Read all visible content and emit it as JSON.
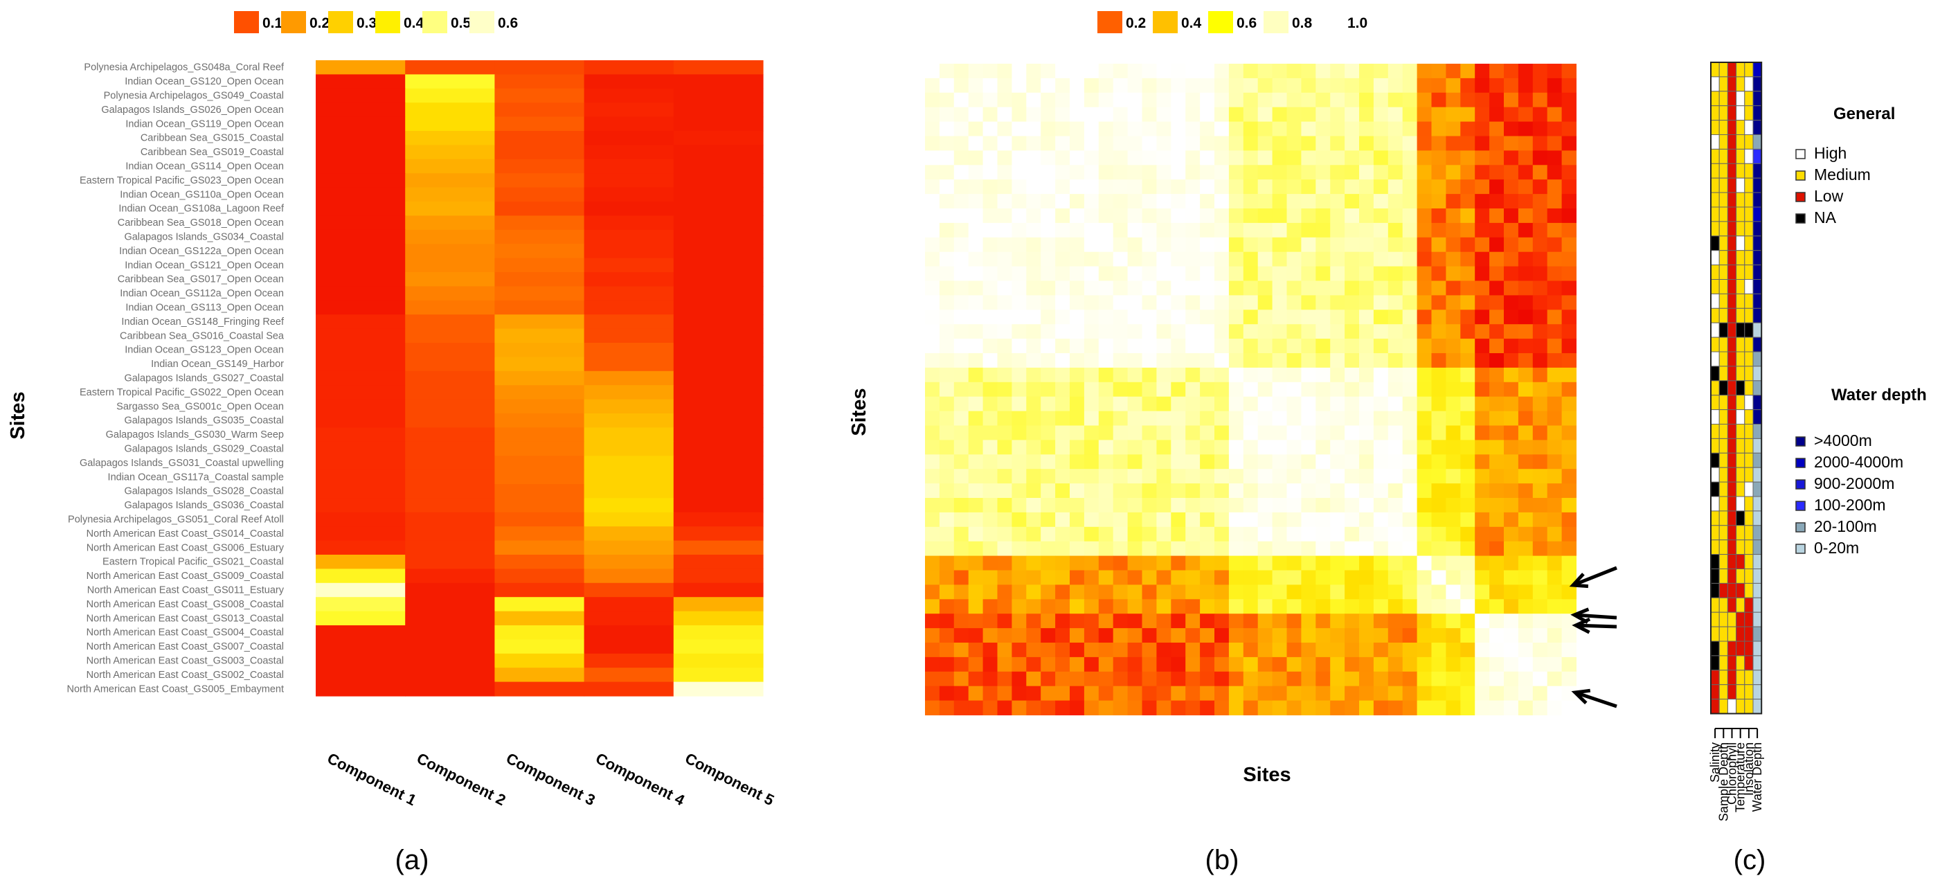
{
  "chart_data": [
    {
      "panel": "(a)",
      "type": "heatmap",
      "ylabel": "Sites",
      "legend": [
        {
          "label": "0.1",
          "color": "#ff5000"
        },
        {
          "label": "0.2",
          "color": "#ff9a00"
        },
        {
          "label": "0.3",
          "color": "#ffd000"
        },
        {
          "label": "0.4",
          "color": "#fff000"
        },
        {
          "label": "0.5",
          "color": "#ffff80"
        },
        {
          "label": "0.6",
          "color": "#ffffc8"
        }
      ],
      "columns": [
        "Component 1",
        "Component 2",
        "Component 3",
        "Component 4",
        "Component 5"
      ],
      "rows": [
        "Polynesia Archipelagos_GS048a_Coral Reef",
        "Indian Ocean_GS120_Open Ocean",
        "Polynesia Archipelagos_GS049_Coastal",
        "Galapagos Islands_GS026_Open Ocean",
        "Indian Ocean_GS119_Open Ocean",
        "Caribbean Sea_GS015_Coastal",
        "Caribbean Sea_GS019_Coastal",
        "Indian Ocean_GS114_Open Ocean",
        "Eastern Tropical Pacific_GS023_Open Ocean",
        "Indian Ocean_GS110a_Open Ocean",
        "Indian Ocean_GS108a_Lagoon Reef",
        "Caribbean Sea_GS018_Open Ocean",
        "Galapagos Islands_GS034_Coastal",
        "Indian Ocean_GS122a_Open Ocean",
        "Indian Ocean_GS121_Open Ocean",
        "Caribbean Sea_GS017_Open Ocean",
        "Indian Ocean_GS112a_Open Ocean",
        "Indian Ocean_GS113_Open Ocean",
        "Indian Ocean_GS148_Fringing Reef",
        "Caribbean Sea_GS016_Coastal Sea",
        "Indian Ocean_GS123_Open Ocean",
        "Indian Ocean_GS149_Harbor",
        "Galapagos Islands_GS027_Coastal",
        "Eastern Tropical Pacific_GS022_Open Ocean",
        "Sargasso Sea_GS001c_Open Ocean",
        "Galapagos Islands_GS035_Coastal",
        "Galapagos Islands_GS030_Warm Seep",
        "Galapagos Islands_GS029_Coastal",
        "Galapagos Islands_GS031_Coastal upwelling",
        "Indian Ocean_GS117a_Coastal sample",
        "Galapagos Islands_GS028_Coastal",
        "Galapagos Islands_GS036_Coastal",
        "Polynesia Archipelagos_GS051_Coral Reef Atoll",
        "North American East Coast_GS014_Coastal",
        "North American East Coast_GS006_Estuary",
        "Eastern Tropical Pacific_GS021_Coastal",
        "North American East Coast_GS009_Coastal",
        "North American East Coast_GS011_Estuary",
        "North American East Coast_GS008_Coastal",
        "North American East Coast_GS013_Coastal",
        "North American East Coast_GS004_Coastal",
        "North American East Coast_GS007_Coastal",
        "North American East Coast_GS003_Coastal",
        "North American East Coast_GS002_Coastal",
        "North American East Coast_GS005_Embayment"
      ],
      "values": [
        [
          0.22,
          0.12,
          0.12,
          0.1,
          0.11
        ],
        [
          0.05,
          0.42,
          0.13,
          0.06,
          0.06
        ],
        [
          0.05,
          0.38,
          0.14,
          0.07,
          0.06
        ],
        [
          0.05,
          0.32,
          0.13,
          0.08,
          0.06
        ],
        [
          0.05,
          0.32,
          0.14,
          0.07,
          0.06
        ],
        [
          0.05,
          0.28,
          0.12,
          0.06,
          0.07
        ],
        [
          0.05,
          0.26,
          0.12,
          0.07,
          0.06
        ],
        [
          0.05,
          0.24,
          0.13,
          0.08,
          0.06
        ],
        [
          0.05,
          0.22,
          0.14,
          0.08,
          0.06
        ],
        [
          0.05,
          0.23,
          0.13,
          0.07,
          0.06
        ],
        [
          0.05,
          0.24,
          0.12,
          0.06,
          0.06
        ],
        [
          0.05,
          0.21,
          0.15,
          0.08,
          0.06
        ],
        [
          0.05,
          0.2,
          0.16,
          0.09,
          0.06
        ],
        [
          0.05,
          0.19,
          0.17,
          0.09,
          0.06
        ],
        [
          0.05,
          0.19,
          0.16,
          0.1,
          0.06
        ],
        [
          0.05,
          0.2,
          0.15,
          0.09,
          0.06
        ],
        [
          0.05,
          0.18,
          0.16,
          0.1,
          0.06
        ],
        [
          0.05,
          0.17,
          0.15,
          0.1,
          0.06
        ],
        [
          0.08,
          0.14,
          0.22,
          0.12,
          0.06
        ],
        [
          0.08,
          0.14,
          0.24,
          0.12,
          0.06
        ],
        [
          0.08,
          0.13,
          0.23,
          0.14,
          0.06
        ],
        [
          0.08,
          0.13,
          0.24,
          0.14,
          0.06
        ],
        [
          0.08,
          0.12,
          0.22,
          0.2,
          0.06
        ],
        [
          0.08,
          0.12,
          0.2,
          0.22,
          0.06
        ],
        [
          0.08,
          0.12,
          0.19,
          0.24,
          0.06
        ],
        [
          0.08,
          0.12,
          0.18,
          0.26,
          0.06
        ],
        [
          0.09,
          0.11,
          0.17,
          0.28,
          0.06
        ],
        [
          0.09,
          0.11,
          0.17,
          0.28,
          0.06
        ],
        [
          0.09,
          0.11,
          0.16,
          0.3,
          0.06
        ],
        [
          0.09,
          0.11,
          0.16,
          0.3,
          0.06
        ],
        [
          0.09,
          0.11,
          0.15,
          0.3,
          0.06
        ],
        [
          0.09,
          0.11,
          0.15,
          0.32,
          0.06
        ],
        [
          0.08,
          0.1,
          0.14,
          0.3,
          0.08
        ],
        [
          0.08,
          0.1,
          0.16,
          0.24,
          0.1
        ],
        [
          0.09,
          0.1,
          0.18,
          0.22,
          0.14
        ],
        [
          0.24,
          0.1,
          0.14,
          0.2,
          0.1
        ],
        [
          0.4,
          0.08,
          0.12,
          0.18,
          0.1
        ],
        [
          0.6,
          0.06,
          0.1,
          0.12,
          0.08
        ],
        [
          0.45,
          0.06,
          0.4,
          0.08,
          0.24
        ],
        [
          0.42,
          0.06,
          0.26,
          0.08,
          0.3
        ],
        [
          0.06,
          0.06,
          0.38,
          0.06,
          0.38
        ],
        [
          0.06,
          0.06,
          0.4,
          0.06,
          0.4
        ],
        [
          0.06,
          0.06,
          0.3,
          0.1,
          0.36
        ],
        [
          0.06,
          0.06,
          0.24,
          0.14,
          0.38
        ],
        [
          0.06,
          0.06,
          0.1,
          0.1,
          0.62
        ]
      ]
    },
    {
      "panel": "(b)",
      "type": "heatmap",
      "xlabel": "Sites",
      "ylabel": "Sites",
      "legend": [
        {
          "label": "0.2",
          "color": "#ff6000"
        },
        {
          "label": "0.4",
          "color": "#ffc000"
        },
        {
          "label": "0.6",
          "color": "#ffff00"
        },
        {
          "label": "0.8",
          "color": "#ffffc0"
        },
        {
          "label": "1.0",
          "color": "#ffffff"
        }
      ],
      "size": 45,
      "arrows": 4
    },
    {
      "panel": "(c)",
      "type": "heatmap",
      "columns": [
        "Salinity",
        "Sample Depth",
        "Chlorophyll",
        "Temperature",
        "Insolation",
        "Water Depth"
      ],
      "legend_general_title": "General",
      "legend_general": [
        {
          "label": "High",
          "color": "#ffffff"
        },
        {
          "label": "Medium",
          "color": "#ffdd00"
        },
        {
          "label": "Low",
          "color": "#dd1100"
        },
        {
          "label": "NA",
          "color": "#000000"
        }
      ],
      "legend_depth_title": "Water depth",
      "legend_depth": [
        {
          "label": ">4000m",
          "color": "#00008b"
        },
        {
          "label": "2000-4000m",
          "color": "#0000c0"
        },
        {
          "label": "900-2000m",
          "color": "#1818d8"
        },
        {
          "label": "100-200m",
          "color": "#2b2bff"
        },
        {
          "label": "20-100m",
          "color": "#8aa8b8"
        },
        {
          "label": "0-20m",
          "color": "#b9d4e0"
        }
      ],
      "general_codes": [
        "W",
        "M",
        "L",
        "N"
      ],
      "rows": [
        [
          "M",
          "M",
          "L",
          "M",
          "M",
          "D2"
        ],
        [
          "W",
          "M",
          "L",
          "M",
          "W",
          "D1"
        ],
        [
          "M",
          "M",
          "L",
          "W",
          "M",
          "D1"
        ],
        [
          "M",
          "M",
          "L",
          "W",
          "M",
          "D1"
        ],
        [
          "M",
          "M",
          "L",
          "M",
          "W",
          "D1"
        ],
        [
          "W",
          "M",
          "L",
          "M",
          "M",
          "D5"
        ],
        [
          "M",
          "M",
          "L",
          "M",
          "W",
          "D4"
        ],
        [
          "M",
          "M",
          "L",
          "M",
          "M",
          "D1"
        ],
        [
          "M",
          "M",
          "L",
          "W",
          "M",
          "D1"
        ],
        [
          "M",
          "M",
          "L",
          "M",
          "M",
          "D1"
        ],
        [
          "M",
          "M",
          "L",
          "M",
          "M",
          "D2"
        ],
        [
          "M",
          "M",
          "L",
          "M",
          "M",
          "D1"
        ],
        [
          "N",
          "M",
          "L",
          "W",
          "M",
          "D1"
        ],
        [
          "W",
          "M",
          "L",
          "M",
          "M",
          "D1"
        ],
        [
          "M",
          "M",
          "L",
          "M",
          "M",
          "D1"
        ],
        [
          "M",
          "M",
          "L",
          "M",
          "W",
          "D1"
        ],
        [
          "W",
          "M",
          "L",
          "M",
          "M",
          "D1"
        ],
        [
          "M",
          "M",
          "L",
          "M",
          "M",
          "D1"
        ],
        [
          "W",
          "N",
          "L",
          "N",
          "N",
          "D6"
        ],
        [
          "M",
          "M",
          "L",
          "M",
          "M",
          "D1"
        ],
        [
          "W",
          "M",
          "L",
          "M",
          "M",
          "D5"
        ],
        [
          "N",
          "M",
          "L",
          "M",
          "M",
          "D6"
        ],
        [
          "M",
          "N",
          "L",
          "N",
          "M",
          "D5"
        ],
        [
          "M",
          "M",
          "L",
          "M",
          "W",
          "D1"
        ],
        [
          "W",
          "M",
          "L",
          "W",
          "M",
          "D1"
        ],
        [
          "M",
          "M",
          "L",
          "M",
          "M",
          "D5"
        ],
        [
          "M",
          "M",
          "L",
          "M",
          "M",
          "D6"
        ],
        [
          "N",
          "M",
          "L",
          "M",
          "M",
          "D5"
        ],
        [
          "W",
          "M",
          "L",
          "M",
          "M",
          "D6"
        ],
        [
          "N",
          "M",
          "L",
          "M",
          "W",
          "D5"
        ],
        [
          "W",
          "M",
          "L",
          "W",
          "M",
          "D6"
        ],
        [
          "M",
          "M",
          "L",
          "N",
          "M",
          "D6"
        ],
        [
          "M",
          "M",
          "L",
          "M",
          "M",
          "D5"
        ],
        [
          "M",
          "M",
          "L",
          "M",
          "M",
          "D5"
        ],
        [
          "N",
          "M",
          "L",
          "L",
          "M",
          "D6"
        ],
        [
          "N",
          "M",
          "L",
          "M",
          "M",
          "D6"
        ],
        [
          "N",
          "L",
          "L",
          "L",
          "M",
          "D6"
        ],
        [
          "M",
          "M",
          "L",
          "M",
          "L",
          "D6"
        ],
        [
          "M",
          "M",
          "M",
          "L",
          "L",
          "D6"
        ],
        [
          "M",
          "M",
          "M",
          "L",
          "L",
          "D5"
        ],
        [
          "N",
          "M",
          "L",
          "L",
          "L",
          "D6"
        ],
        [
          "N",
          "M",
          "L",
          "M",
          "L",
          "D6"
        ],
        [
          "L",
          "M",
          "L",
          "M",
          "M",
          "D6"
        ],
        [
          "L",
          "M",
          "L",
          "M",
          "M",
          "D6"
        ],
        [
          "L",
          "M",
          "W",
          "M",
          "M",
          "D6"
        ]
      ]
    }
  ],
  "panel_labels": {
    "a": "(a)",
    "b": "(b)",
    "c": "(c)"
  }
}
